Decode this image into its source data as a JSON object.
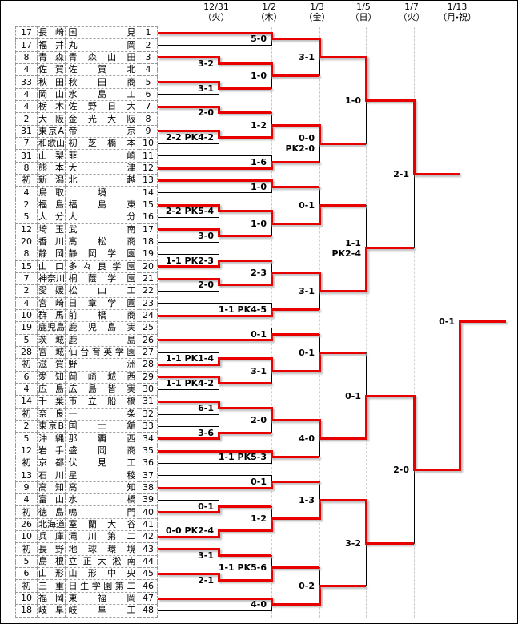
{
  "header": {
    "columns": [
      {
        "date": "12/31",
        "day": "（火）"
      },
      {
        "date": "1/2",
        "day": "（木）"
      },
      {
        "date": "1/3",
        "day": "（金）"
      },
      {
        "date": "1/5",
        "day": "（日）"
      },
      {
        "date": "1/7",
        "day": "（火）"
      },
      {
        "date": "1/13",
        "day": "（月・祝）"
      }
    ]
  },
  "colors": {
    "winner_line": "#e80000",
    "loser_line": "#000000",
    "table_grid": "#999999",
    "round_guide": "#cccccc"
  },
  "teams": [
    {
      "apps": "17",
      "pref": "長崎",
      "school": "国見",
      "seed": "1"
    },
    {
      "apps": "17",
      "pref": "福井",
      "school": "丸岡",
      "seed": "2"
    },
    {
      "apps": "8",
      "pref": "青森",
      "school": "青森山田",
      "seed": "3"
    },
    {
      "apps": "4",
      "pref": "佐賀",
      "school": "佐賀北",
      "seed": "4"
    },
    {
      "apps": "33",
      "pref": "秋田",
      "school": "秋田商",
      "seed": "5"
    },
    {
      "apps": "4",
      "pref": "岡山",
      "school": "水島工",
      "seed": "6"
    },
    {
      "apps": "4",
      "pref": "栃木",
      "school": "佐野日大",
      "seed": "7"
    },
    {
      "apps": "2",
      "pref": "大阪",
      "school": "金光大阪",
      "seed": "8"
    },
    {
      "apps": "31",
      "pref": "東京A",
      "school": "帝京",
      "seed": "9"
    },
    {
      "apps": "7",
      "pref": "和歌山",
      "school": "初芝橋本",
      "seed": "10"
    },
    {
      "apps": "31",
      "pref": "山梨",
      "school": "韮崎",
      "seed": "11"
    },
    {
      "apps": "8",
      "pref": "熊本",
      "school": "大津",
      "seed": "12"
    },
    {
      "apps": "初",
      "pref": "新潟",
      "school": "北越",
      "seed": "13"
    },
    {
      "apps": "4",
      "pref": "鳥取",
      "school": "境",
      "seed": "14"
    },
    {
      "apps": "2",
      "pref": "福島",
      "school": "福島東",
      "seed": "15"
    },
    {
      "apps": "5",
      "pref": "大分",
      "school": "大分",
      "seed": "16"
    },
    {
      "apps": "12",
      "pref": "埼玉",
      "school": "武南",
      "seed": "17"
    },
    {
      "apps": "20",
      "pref": "香川",
      "school": "高松商",
      "seed": "18"
    },
    {
      "apps": "8",
      "pref": "静岡",
      "school": "静岡学園",
      "seed": "19"
    },
    {
      "apps": "15",
      "pref": "山口",
      "school": "多々良学園",
      "seed": "20"
    },
    {
      "apps": "7",
      "pref": "神奈川",
      "school": "桐蔭学園",
      "seed": "21"
    },
    {
      "apps": "2",
      "pref": "愛媛",
      "school": "松山工",
      "seed": "22"
    },
    {
      "apps": "4",
      "pref": "宮崎",
      "school": "日章学園",
      "seed": "23"
    },
    {
      "apps": "10",
      "pref": "群馬",
      "school": "前橋商",
      "seed": "24"
    },
    {
      "apps": "19",
      "pref": "鹿児島",
      "school": "鹿児島実",
      "seed": "25"
    },
    {
      "apps": "5",
      "pref": "茨城",
      "school": "鹿島",
      "seed": "26"
    },
    {
      "apps": "28",
      "pref": "宮城",
      "school": "仙台育英学園",
      "seed": "27"
    },
    {
      "apps": "初",
      "pref": "滋賀",
      "school": "野洲",
      "seed": "28"
    },
    {
      "apps": "6",
      "pref": "愛知",
      "school": "岡崎城西",
      "seed": "29"
    },
    {
      "apps": "4",
      "pref": "広島",
      "school": "広島皆実",
      "seed": "30"
    },
    {
      "apps": "14",
      "pref": "千葉",
      "school": "市立船橋",
      "seed": "31"
    },
    {
      "apps": "初",
      "pref": "奈良",
      "school": "一条",
      "seed": "32"
    },
    {
      "apps": "2",
      "pref": "東京B",
      "school": "国士舘",
      "seed": "33"
    },
    {
      "apps": "5",
      "pref": "沖縄",
      "school": "那覇西",
      "seed": "34"
    },
    {
      "apps": "12",
      "pref": "岩手",
      "school": "盛岡商",
      "seed": "35"
    },
    {
      "apps": "初",
      "pref": "京都",
      "school": "伏見工",
      "seed": "36"
    },
    {
      "apps": "13",
      "pref": "石川",
      "school": "星稜",
      "seed": "37"
    },
    {
      "apps": "9",
      "pref": "高知",
      "school": "高知",
      "seed": "38"
    },
    {
      "apps": "4",
      "pref": "富山",
      "school": "水橋",
      "seed": "39"
    },
    {
      "apps": "初",
      "pref": "徳島",
      "school": "鳴門",
      "seed": "40"
    },
    {
      "apps": "26",
      "pref": "北海道",
      "school": "室蘭大谷",
      "seed": "41"
    },
    {
      "apps": "10",
      "pref": "兵庫",
      "school": "滝川第二",
      "seed": "42"
    },
    {
      "apps": "初",
      "pref": "長野",
      "school": "地球環境",
      "seed": "43"
    },
    {
      "apps": "5",
      "pref": "島根",
      "school": "立正大淞南",
      "seed": "44"
    },
    {
      "apps": "6",
      "pref": "山形",
      "school": "山形中央",
      "seed": "45"
    },
    {
      "apps": "初",
      "pref": "三重",
      "school": "日生学園第二",
      "seed": "46"
    },
    {
      "apps": "10",
      "pref": "福岡",
      "school": "東福岡",
      "seed": "47"
    },
    {
      "apps": "18",
      "pref": "岐阜",
      "school": "岐阜工",
      "seed": "48"
    }
  ],
  "bracket": {
    "matches": [
      {
        "id": "m1",
        "round": 0,
        "top": "t3",
        "bottom": "t4",
        "score": "3-2",
        "winner": "T"
      },
      {
        "id": "m2",
        "round": 0,
        "top": "t5",
        "bottom": "t6",
        "score": "3-1",
        "winner": "T"
      },
      {
        "id": "m3",
        "round": 0,
        "top": "t7",
        "bottom": "t8",
        "score": "2-0",
        "winner": "T"
      },
      {
        "id": "m4",
        "round": 0,
        "top": "t9",
        "bottom": "t10",
        "score": "2-2 PK4-2",
        "winner": "T"
      },
      {
        "id": "m5",
        "round": 0,
        "top": "t15",
        "bottom": "t16",
        "score": "2-2 PK5-4",
        "winner": "T"
      },
      {
        "id": "m6",
        "round": 0,
        "top": "t17",
        "bottom": "t18",
        "score": "3-0",
        "winner": "T"
      },
      {
        "id": "m7",
        "round": 0,
        "top": "t19",
        "bottom": "t20",
        "score": "1-1 PK2-3",
        "winner": "B"
      },
      {
        "id": "m8",
        "round": 0,
        "top": "t21",
        "bottom": "t22",
        "score": "2-0",
        "winner": "T"
      },
      {
        "id": "m9",
        "round": 0,
        "top": "t27",
        "bottom": "t28",
        "score": "1-1 PK1-4",
        "winner": "B"
      },
      {
        "id": "m10",
        "round": 0,
        "top": "t29",
        "bottom": "t30",
        "score": "1-1 PK4-2",
        "winner": "T"
      },
      {
        "id": "m11",
        "round": 0,
        "top": "t31",
        "bottom": "t32",
        "score": "6-1",
        "winner": "T"
      },
      {
        "id": "m12",
        "round": 0,
        "top": "t33",
        "bottom": "t34",
        "score": "3-6",
        "winner": "B"
      },
      {
        "id": "m13",
        "round": 0,
        "top": "t39",
        "bottom": "t40",
        "score": "0-1",
        "winner": "B"
      },
      {
        "id": "m14",
        "round": 0,
        "top": "t41",
        "bottom": "t42",
        "score": "0-0 PK2-4",
        "winner": "B"
      },
      {
        "id": "m15",
        "round": 0,
        "top": "t43",
        "bottom": "t44",
        "score": "3-1",
        "winner": "T"
      },
      {
        "id": "m16",
        "round": 0,
        "top": "t45",
        "bottom": "t46",
        "score": "2-1",
        "winner": "T"
      },
      {
        "id": "m17",
        "round": 1,
        "top": "t1",
        "bottom": "t2",
        "score": "5-0",
        "winner": "T"
      },
      {
        "id": "m18",
        "round": 1,
        "top": "m1",
        "bottom": "m2",
        "score": "1-0",
        "winner": "T"
      },
      {
        "id": "m19",
        "round": 1,
        "top": "m3",
        "bottom": "m4",
        "score": "1-2",
        "winner": "B"
      },
      {
        "id": "m20",
        "round": 1,
        "top": "t11",
        "bottom": "t12",
        "score": "1-6",
        "winner": "B"
      },
      {
        "id": "m21",
        "round": 1,
        "top": "t13",
        "bottom": "t14",
        "score": "1-0",
        "winner": "T"
      },
      {
        "id": "m22",
        "round": 1,
        "top": "m5",
        "bottom": "m6",
        "score": "1-0",
        "winner": "T"
      },
      {
        "id": "m23",
        "round": 1,
        "top": "m7",
        "bottom": "m8",
        "score": "2-3",
        "winner": "B"
      },
      {
        "id": "m24",
        "round": 1,
        "top": "t23",
        "bottom": "t24",
        "score": "1-1 PK4-5",
        "winner": "B"
      },
      {
        "id": "m25",
        "round": 1,
        "top": "t25",
        "bottom": "t26",
        "score": "0-1",
        "winner": "B"
      },
      {
        "id": "m26",
        "round": 1,
        "top": "m9",
        "bottom": "m10",
        "score": "3-1",
        "winner": "T"
      },
      {
        "id": "m27",
        "round": 1,
        "top": "m11",
        "bottom": "m12",
        "score": "2-0",
        "winner": "T"
      },
      {
        "id": "m28",
        "round": 1,
        "top": "t35",
        "bottom": "t36",
        "score": "1-1 PK5-3",
        "winner": "T"
      },
      {
        "id": "m29",
        "round": 1,
        "top": "t37",
        "bottom": "t38",
        "score": "0-1",
        "winner": "B"
      },
      {
        "id": "m30",
        "round": 1,
        "top": "m13",
        "bottom": "m14",
        "score": "1-2",
        "winner": "B"
      },
      {
        "id": "m31",
        "round": 1,
        "top": "m15",
        "bottom": "m16",
        "score": "1-1 PK5-6",
        "winner": "B"
      },
      {
        "id": "m32",
        "round": 1,
        "top": "t47",
        "bottom": "t48",
        "score": "4-0",
        "winner": "T"
      },
      {
        "id": "m33",
        "round": 2,
        "top": "m17",
        "bottom": "m18",
        "score": "3-1",
        "winner": "T"
      },
      {
        "id": "m34",
        "round": 2,
        "top": "m19",
        "bottom": "m20",
        "score": "0-0 PK2-0",
        "winner": "T",
        "stack": true
      },
      {
        "id": "m35",
        "round": 2,
        "top": "m21",
        "bottom": "m22",
        "score": "0-1",
        "winner": "B"
      },
      {
        "id": "m36",
        "round": 2,
        "top": "m23",
        "bottom": "m24",
        "score": "3-1",
        "winner": "T"
      },
      {
        "id": "m37",
        "round": 2,
        "top": "m25",
        "bottom": "m26",
        "score": "0-1",
        "winner": "B"
      },
      {
        "id": "m38",
        "round": 2,
        "top": "m27",
        "bottom": "m28",
        "score": "4-0",
        "winner": "T"
      },
      {
        "id": "m39",
        "round": 2,
        "top": "m29",
        "bottom": "m30",
        "score": "1-3",
        "winner": "B"
      },
      {
        "id": "m40",
        "round": 2,
        "top": "m31",
        "bottom": "m32",
        "score": "0-2",
        "winner": "B"
      },
      {
        "id": "m41",
        "round": 3,
        "top": "m33",
        "bottom": "m34",
        "score": "1-0",
        "winner": "T"
      },
      {
        "id": "m42",
        "round": 3,
        "top": "m35",
        "bottom": "m36",
        "score": "1-1 PK2-4",
        "winner": "B",
        "stack": true
      },
      {
        "id": "m43",
        "round": 3,
        "top": "m37",
        "bottom": "m38",
        "score": "0-1",
        "winner": "B"
      },
      {
        "id": "m44",
        "round": 3,
        "top": "m39",
        "bottom": "m40",
        "score": "3-2",
        "winner": "T"
      },
      {
        "id": "m45",
        "round": 4,
        "top": "m41",
        "bottom": "m42",
        "score": "2-1",
        "winner": "T"
      },
      {
        "id": "m46",
        "round": 4,
        "top": "m43",
        "bottom": "m44",
        "score": "2-0",
        "winner": "T"
      },
      {
        "id": "m47",
        "round": 5,
        "top": "m45",
        "bottom": "m46",
        "score": "0-1",
        "winner": "B"
      }
    ]
  }
}
